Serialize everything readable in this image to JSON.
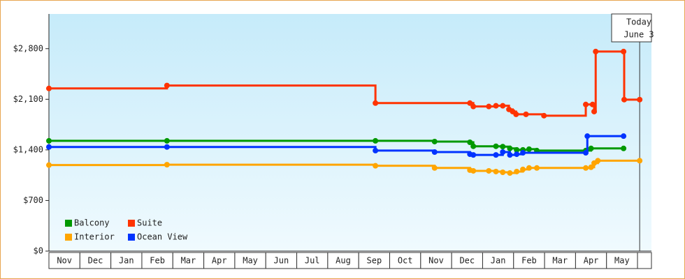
{
  "chart_data": {
    "type": "line",
    "categories": [
      "Nov",
      "Dec",
      "Jan",
      "Feb",
      "Mar",
      "Apr",
      "May",
      "Jun",
      "Jul",
      "Aug",
      "Sep",
      "Oct",
      "Nov",
      "Dec",
      "Jan",
      "Feb",
      "Mar",
      "Apr",
      "May"
    ],
    "xlim": [
      0,
      19.45
    ],
    "ylim": [
      0,
      3280
    ],
    "yticks": [
      {
        "value": 0,
        "label": "$0"
      },
      {
        "value": 700,
        "label": "$700"
      },
      {
        "value": 1400,
        "label": "$1,400"
      },
      {
        "value": 2100,
        "label": "$2,100"
      },
      {
        "value": 2800,
        "label": "$2,800"
      }
    ],
    "today_label": "Today",
    "today_date": "June 3",
    "today_x": 19.07,
    "series": [
      {
        "name": "Balcony",
        "color": "#009900",
        "x": [
          0,
          3.81,
          10.54,
          12.45,
          13.59,
          13.7,
          14.43,
          14.65,
          14.88,
          15.1,
          15.3,
          15.5,
          15.75,
          17.33,
          17.5,
          18.55
        ],
        "values": [
          1525,
          1525,
          1525,
          1515,
          1505,
          1450,
          1450,
          1445,
          1420,
          1400,
          1400,
          1410,
          1390,
          1390,
          1420,
          1420
        ]
      },
      {
        "name": "Suite",
        "color": "#ff3300",
        "x": [
          0,
          3.81,
          10.54,
          13.59,
          13.7,
          14.2,
          14.43,
          14.65,
          14.85,
          14.97,
          15.08,
          15.4,
          15.98,
          17.33,
          17.55,
          17.6,
          17.65,
          18.55,
          18.57,
          19.07
        ],
        "values": [
          2250,
          2290,
          2047,
          2047,
          2000,
          2000,
          2010,
          2010,
          1960,
          1930,
          1892,
          1892,
          1873,
          2028,
          2028,
          1930,
          2760,
          2760,
          2095,
          2095
        ]
      },
      {
        "name": "Interior",
        "color": "#ffa500",
        "x": [
          0,
          3.81,
          10.54,
          12.45,
          13.59,
          13.7,
          14.2,
          14.43,
          14.65,
          14.88,
          15.1,
          15.3,
          15.5,
          15.75,
          17.33,
          17.5,
          17.6,
          17.72,
          19.07
        ],
        "values": [
          1190,
          1195,
          1180,
          1150,
          1120,
          1110,
          1110,
          1100,
          1090,
          1080,
          1100,
          1130,
          1150,
          1150,
          1150,
          1160,
          1217,
          1250,
          1250
        ]
      },
      {
        "name": "Ocean View",
        "color": "#0033ff",
        "x": [
          0,
          3.81,
          10.54,
          12.45,
          13.59,
          13.7,
          14.43,
          14.65,
          14.88,
          15.1,
          15.3,
          17.33,
          17.38,
          18.55
        ],
        "values": [
          1440,
          1440,
          1390,
          1370,
          1340,
          1330,
          1330,
          1370,
          1330,
          1340,
          1360,
          1360,
          1590,
          1590
        ]
      }
    ]
  }
}
